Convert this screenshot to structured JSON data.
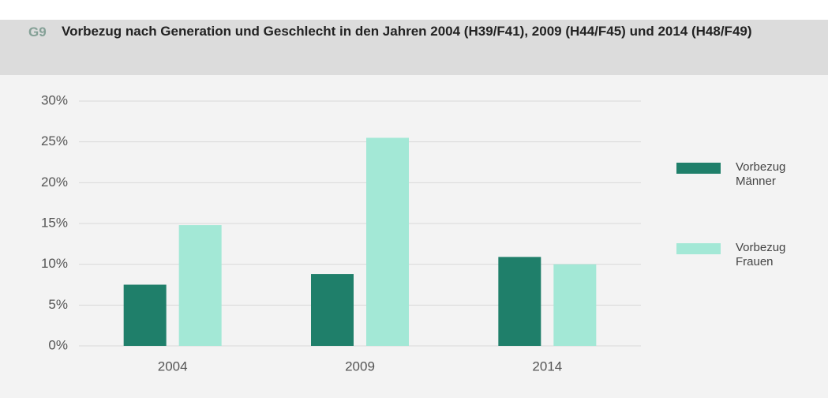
{
  "chart_data": {
    "type": "bar",
    "code": "G9",
    "title": "Vorbezug nach Generation und Geschlecht in den Jahren 2004 (H39/F41), 2009 (H44/F45) und 2014 (H48/F49)",
    "categories": [
      "2004",
      "2009",
      "2014"
    ],
    "series": [
      {
        "name": "Vorbezug Männer",
        "color": "#1f7f6a",
        "values": [
          7.5,
          8.8,
          10.9
        ]
      },
      {
        "name": "Vorbezug Frauen",
        "color": "#a3e8d6",
        "values": [
          14.8,
          25.5,
          10.0
        ]
      }
    ],
    "ylim": [
      0,
      30
    ],
    "yticks": [
      {
        "value": 0,
        "label": "0%"
      },
      {
        "value": 5,
        "label": "5%"
      },
      {
        "value": 10,
        "label": "10%"
      },
      {
        "value": 15,
        "label": "15%"
      },
      {
        "value": 20,
        "label": "20%"
      },
      {
        "value": 25,
        "label": "25%"
      },
      {
        "value": 30,
        "label": "30%"
      }
    ],
    "grid": true,
    "legend": "right"
  }
}
